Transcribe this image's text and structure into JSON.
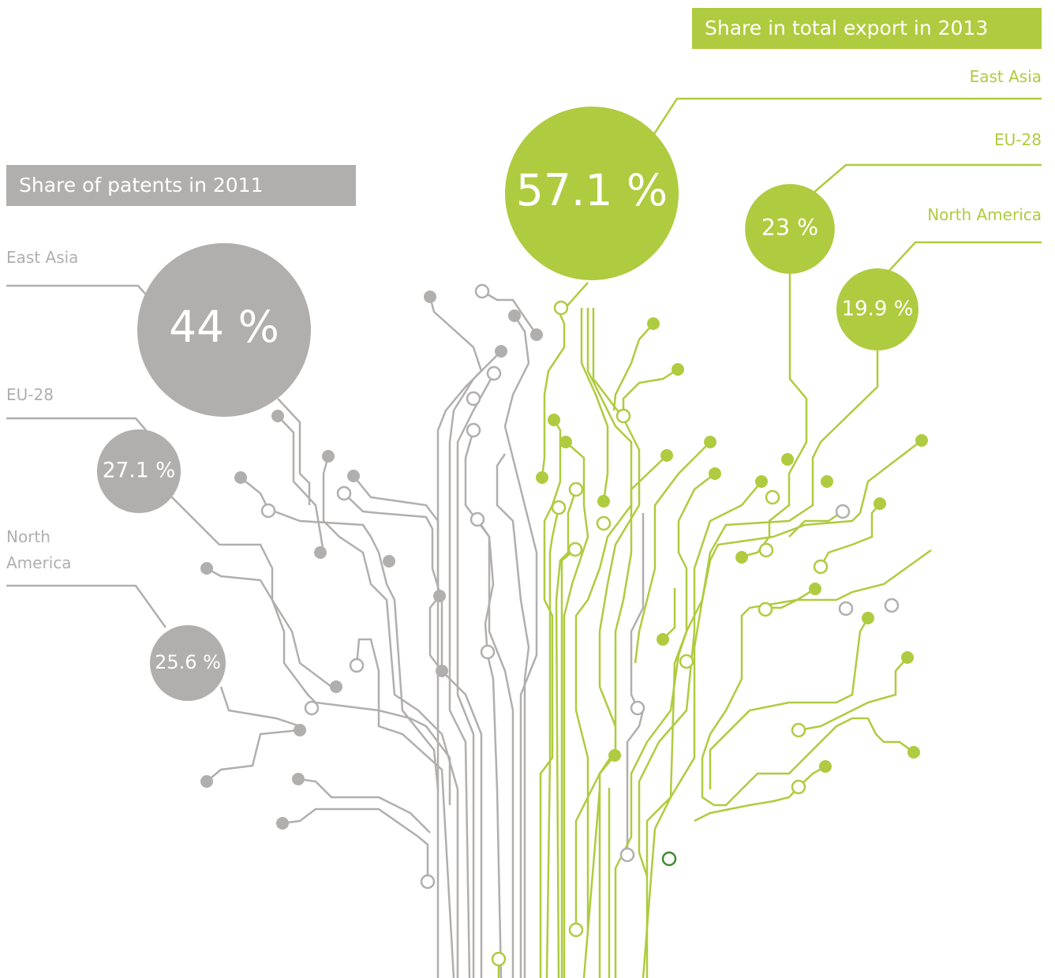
{
  "chart_data": [
    {
      "type": "bubble",
      "title": "Share of patents in 2011",
      "color": "#b1afae",
      "categories": [
        "East Asia",
        "EU-28",
        "North America"
      ],
      "values": [
        44,
        27.1,
        25.6
      ],
      "value_labels": [
        "44 %",
        "27.1 %",
        "25.6 %"
      ]
    },
    {
      "type": "bubble",
      "title": "Share in total export in 2013",
      "color": "#afcb3f",
      "categories": [
        "East Asia",
        "EU-28",
        "North America"
      ],
      "values": [
        57.1,
        23,
        19.9
      ],
      "value_labels": [
        "57.1 %",
        "23 %",
        "19.9 %"
      ]
    }
  ]
}
